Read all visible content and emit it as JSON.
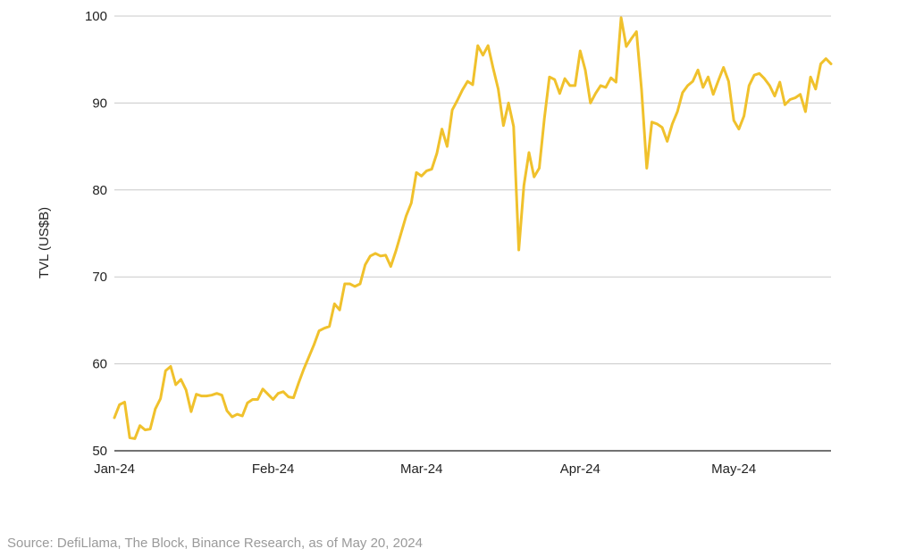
{
  "chart_data": {
    "type": "line",
    "title": "",
    "xlabel": "",
    "ylabel": "TVL (US$B)",
    "ylim": [
      50,
      100
    ],
    "yticks": [
      50,
      60,
      70,
      80,
      90,
      100
    ],
    "xticks": [
      "Jan-24",
      "Feb-24",
      "Mar-24",
      "Apr-24",
      "May-24"
    ],
    "grid": true,
    "legend": "none",
    "colors": {
      "line": "#F0C12C",
      "grid": "#c8c8c8"
    },
    "series": [
      {
        "x": [
          "2024-01-01",
          "2024-01-02",
          "2024-01-03",
          "2024-01-04",
          "2024-01-05",
          "2024-01-06",
          "2024-01-07",
          "2024-01-08",
          "2024-01-09",
          "2024-01-10",
          "2024-01-11",
          "2024-01-12",
          "2024-01-13",
          "2024-01-14",
          "2024-01-15",
          "2024-01-16",
          "2024-01-17",
          "2024-01-18",
          "2024-01-19",
          "2024-01-20",
          "2024-01-21",
          "2024-01-22",
          "2024-01-23",
          "2024-01-24",
          "2024-01-25",
          "2024-01-26",
          "2024-01-27",
          "2024-01-28",
          "2024-01-29",
          "2024-01-30",
          "2024-01-31",
          "2024-02-01",
          "2024-02-02",
          "2024-02-03",
          "2024-02-04",
          "2024-02-05",
          "2024-02-06",
          "2024-02-07",
          "2024-02-08",
          "2024-02-09",
          "2024-02-10",
          "2024-02-11",
          "2024-02-12",
          "2024-02-13",
          "2024-02-14",
          "2024-02-15",
          "2024-02-16",
          "2024-02-17",
          "2024-02-18",
          "2024-02-19",
          "2024-02-20",
          "2024-02-21",
          "2024-02-22",
          "2024-02-23",
          "2024-02-24",
          "2024-02-25",
          "2024-02-26",
          "2024-02-27",
          "2024-02-28",
          "2024-02-29",
          "2024-03-01",
          "2024-03-02",
          "2024-03-03",
          "2024-03-04",
          "2024-03-05",
          "2024-03-06",
          "2024-03-07",
          "2024-03-08",
          "2024-03-09",
          "2024-03-10",
          "2024-03-11",
          "2024-03-12",
          "2024-03-13",
          "2024-03-14",
          "2024-03-15",
          "2024-03-16",
          "2024-03-17",
          "2024-03-18",
          "2024-03-19",
          "2024-03-20",
          "2024-03-21",
          "2024-03-22",
          "2024-03-23",
          "2024-03-24",
          "2024-03-25",
          "2024-03-26",
          "2024-03-27",
          "2024-03-28",
          "2024-03-29",
          "2024-03-30",
          "2024-03-31",
          "2024-04-01",
          "2024-04-02",
          "2024-04-03",
          "2024-04-04",
          "2024-04-05",
          "2024-04-06",
          "2024-04-07",
          "2024-04-08",
          "2024-04-09",
          "2024-04-10",
          "2024-04-11",
          "2024-04-12",
          "2024-04-13",
          "2024-04-14",
          "2024-04-15",
          "2024-04-16",
          "2024-04-17",
          "2024-04-18",
          "2024-04-19",
          "2024-04-20",
          "2024-04-21",
          "2024-04-22",
          "2024-04-23",
          "2024-04-24",
          "2024-04-25",
          "2024-04-26",
          "2024-04-27",
          "2024-04-28",
          "2024-04-29",
          "2024-04-30",
          "2024-05-01",
          "2024-05-02",
          "2024-05-03",
          "2024-05-04",
          "2024-05-05",
          "2024-05-06",
          "2024-05-07",
          "2024-05-08",
          "2024-05-09",
          "2024-05-10",
          "2024-05-11",
          "2024-05-12",
          "2024-05-13",
          "2024-05-14",
          "2024-05-15",
          "2024-05-16",
          "2024-05-17",
          "2024-05-18",
          "2024-05-19",
          "2024-05-20"
        ],
        "values": [
          53.8,
          55.3,
          55.6,
          51.5,
          51.4,
          52.9,
          52.4,
          52.5,
          54.8,
          56.0,
          59.2,
          59.7,
          57.6,
          58.2,
          57.0,
          54.5,
          56.5,
          56.3,
          56.3,
          56.4,
          56.6,
          56.4,
          54.6,
          53.9,
          54.2,
          54.0,
          55.5,
          55.9,
          55.9,
          57.1,
          56.5,
          55.9,
          56.6,
          56.8,
          56.2,
          56.1,
          57.8,
          59.4,
          60.8,
          62.2,
          63.8,
          64.1,
          64.3,
          66.9,
          66.2,
          69.2,
          69.2,
          68.9,
          69.2,
          71.4,
          72.4,
          72.7,
          72.4,
          72.5,
          71.2,
          73.0,
          75.0,
          77.0,
          78.5,
          82.0,
          81.6,
          82.2,
          82.4,
          84.2,
          87.0,
          85.0,
          89.2,
          90.3,
          91.5,
          92.5,
          92.1,
          96.6,
          95.5,
          96.6,
          94.0,
          91.6,
          87.4,
          90.0,
          87.3,
          73.1,
          80.5,
          84.3,
          81.5,
          82.5,
          88.2,
          93.0,
          92.7,
          91.1,
          92.8,
          92.0,
          92.0,
          96.0,
          93.8,
          90.0,
          91.1,
          92.0,
          91.8,
          92.9,
          92.4,
          99.8,
          96.5,
          97.4,
          98.2,
          91.5,
          82.5,
          87.8,
          87.6,
          87.2,
          85.6,
          87.6,
          89.0,
          91.2,
          92.0,
          92.5,
          93.8,
          91.8,
          93.0,
          91.0,
          92.6,
          94.1,
          92.5,
          88.0,
          87.0,
          88.5,
          92.0,
          93.2,
          93.4,
          92.8,
          92.0,
          90.8,
          92.4,
          89.8,
          90.4,
          90.6,
          91.0,
          89.0,
          93.0,
          91.6,
          94.5,
          95.1,
          94.5
        ]
      }
    ]
  },
  "source_note": "Source: DefiLlama, The Block, Binance Research, as of May 20, 2024"
}
